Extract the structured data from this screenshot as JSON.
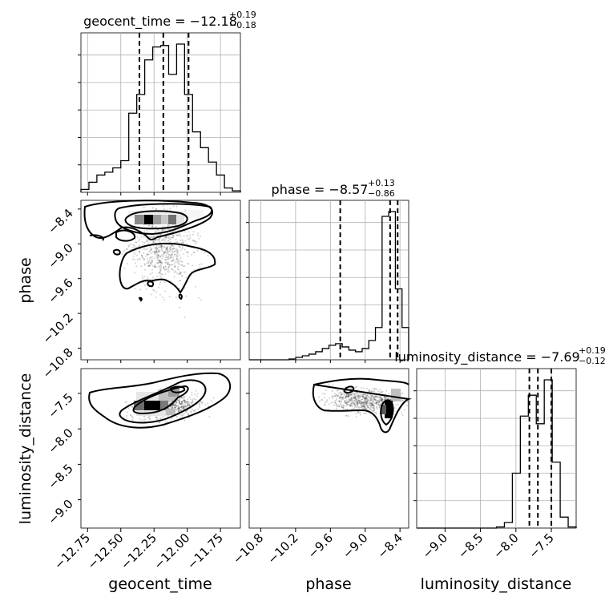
{
  "chart_data": {
    "type": "corner",
    "parameters": [
      "geocent_time",
      "phase",
      "luminosity_distance"
    ],
    "titles": [
      {
        "parameter": "geocent_time",
        "prefix": "geocent_time = ",
        "median": "−12.18",
        "upper": "+0.19",
        "lower": "−0.18"
      },
      {
        "parameter": "phase",
        "prefix": "phase = ",
        "median": "−8.57",
        "upper": "+0.13",
        "lower": "−0.86"
      },
      {
        "parameter": "luminosity_distance",
        "prefix": "luminosity_distance = ",
        "median": "−7.69",
        "upper": "+0.19",
        "lower": "−0.12"
      }
    ],
    "axes": {
      "geocent_time": {
        "label": "geocent_time",
        "range": [
          -12.8,
          -11.6
        ],
        "ticks": [
          -12.75,
          -12.5,
          -12.25,
          -12.0,
          -11.75
        ],
        "tick_labels": [
          "−12.75",
          "−12.50",
          "−12.25",
          "−12.00",
          "−11.75"
        ]
      },
      "phase": {
        "label": "phase",
        "range": [
          -11.0,
          -8.25
        ],
        "ticks": [
          -10.8,
          -10.2,
          -9.6,
          -9.0,
          -8.4
        ],
        "tick_labels": [
          "−10.8",
          "−10.2",
          "−9.6",
          "−9.0",
          "−8.4"
        ]
      },
      "luminosity_distance": {
        "label": "luminosity_distance",
        "range": [
          -9.4,
          -7.15
        ],
        "ticks": [
          -9.0,
          -8.5,
          -8.0,
          -7.5
        ],
        "tick_labels": [
          "−9.0",
          "−8.5",
          "−8.0",
          "−7.5"
        ]
      }
    },
    "quantiles": {
      "geocent_time": [
        -12.36,
        -12.18,
        -11.99
      ],
      "phase": [
        -9.43,
        -8.57,
        -8.44
      ],
      "luminosity_distance": [
        -7.81,
        -7.69,
        -7.5
      ]
    },
    "histograms": {
      "geocent_time": {
        "edges_range": [
          -12.8,
          -11.6
        ],
        "counts": [
          2,
          7,
          12,
          14,
          17,
          22,
          55,
          68,
          92,
          101,
          102,
          82,
          103,
          68,
          42,
          31,
          21,
          12,
          3,
          1
        ]
      },
      "phase": {
        "edges_range": [
          -11.0,
          -8.25
        ],
        "counts": [
          0,
          0,
          0,
          0,
          0,
          0,
          1,
          3,
          5,
          7,
          10,
          14,
          18,
          20,
          16,
          12,
          10,
          14,
          24,
          40,
          178,
          184,
          88,
          40
        ]
      },
      "luminosity_distance": {
        "edges_range": [
          -9.4,
          -7.15
        ],
        "counts": [
          0,
          0,
          0,
          0,
          0,
          0,
          0,
          0,
          0,
          0,
          1,
          5,
          50,
          102,
          121,
          95,
          135,
          60,
          10,
          1
        ]
      }
    },
    "contours_2d": [
      {
        "x": "geocent_time",
        "y": "phase",
        "mode_region": {
          "x": [
            -12.4,
            -12.05
          ],
          "y": [
            -8.6,
            -8.45
          ]
        }
      },
      {
        "x": "geocent_time",
        "y": "luminosity_distance",
        "mode_region": {
          "x": [
            -12.35,
            -12.1
          ],
          "y": [
            -7.8,
            -7.6
          ]
        }
      },
      {
        "x": "phase",
        "y": "luminosity_distance",
        "mode_region": {
          "x": [
            -8.6,
            -8.45
          ],
          "y": [
            -7.85,
            -7.6
          ]
        }
      }
    ],
    "grid": true
  }
}
